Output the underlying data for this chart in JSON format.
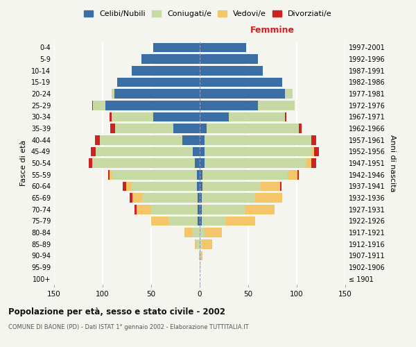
{
  "age_groups": [
    "100+",
    "95-99",
    "90-94",
    "85-89",
    "80-84",
    "75-79",
    "70-74",
    "65-69",
    "60-64",
    "55-59",
    "50-54",
    "45-49",
    "40-44",
    "35-39",
    "30-34",
    "25-29",
    "20-24",
    "15-19",
    "10-14",
    "5-9",
    "0-4"
  ],
  "birth_years": [
    "≤ 1901",
    "1902-1906",
    "1907-1911",
    "1912-1916",
    "1917-1921",
    "1922-1926",
    "1927-1931",
    "1932-1936",
    "1937-1941",
    "1942-1946",
    "1947-1951",
    "1952-1956",
    "1957-1961",
    "1962-1966",
    "1967-1971",
    "1972-1976",
    "1977-1981",
    "1982-1986",
    "1987-1991",
    "1992-1996",
    "1997-2001"
  ],
  "male": {
    "celibi": [
      0,
      0,
      0,
      0,
      0,
      2,
      2,
      2,
      3,
      3,
      5,
      7,
      18,
      27,
      48,
      97,
      88,
      85,
      70,
      60,
      48
    ],
    "coniugati": [
      0,
      0,
      1,
      3,
      8,
      30,
      48,
      57,
      68,
      88,
      105,
      100,
      85,
      60,
      43,
      13,
      3,
      0,
      0,
      0,
      0
    ],
    "vedovi": [
      0,
      0,
      0,
      2,
      8,
      18,
      15,
      10,
      5,
      2,
      1,
      0,
      0,
      0,
      0,
      0,
      0,
      0,
      0,
      0,
      0
    ],
    "divorziati": [
      0,
      0,
      0,
      0,
      0,
      0,
      2,
      3,
      3,
      1,
      3,
      5,
      5,
      5,
      2,
      1,
      0,
      0,
      0,
      0,
      0
    ]
  },
  "female": {
    "nubili": [
      0,
      0,
      0,
      0,
      0,
      2,
      2,
      2,
      3,
      3,
      5,
      5,
      5,
      7,
      30,
      60,
      88,
      85,
      65,
      60,
      48
    ],
    "coniugate": [
      0,
      0,
      1,
      3,
      5,
      25,
      45,
      55,
      60,
      88,
      105,
      110,
      110,
      95,
      58,
      38,
      8,
      0,
      0,
      0,
      0
    ],
    "vedove": [
      0,
      1,
      2,
      10,
      18,
      30,
      30,
      28,
      20,
      10,
      5,
      3,
      0,
      0,
      0,
      0,
      0,
      0,
      0,
      0,
      0
    ],
    "divorziate": [
      0,
      0,
      0,
      0,
      0,
      0,
      0,
      0,
      1,
      1,
      5,
      5,
      5,
      3,
      1,
      0,
      0,
      0,
      0,
      0,
      0
    ]
  },
  "colors": {
    "celibi": "#3a6ea5",
    "coniugati": "#c8daa4",
    "vedovi": "#f5c56a",
    "divorziati": "#cc2222"
  },
  "xlim": 150,
  "title": "Popolazione per età, sesso e stato civile - 2002",
  "subtitle": "COMUNE DI BAONE (PD) - Dati ISTAT 1° gennaio 2002 - Elaborazione TUTTITALIA.IT",
  "ylabel_left": "Fasce di età",
  "ylabel_right": "Anni di nascita",
  "xlabel_right": "Femmine",
  "bg_color": "#f5f5f0",
  "bar_height": 0.82
}
